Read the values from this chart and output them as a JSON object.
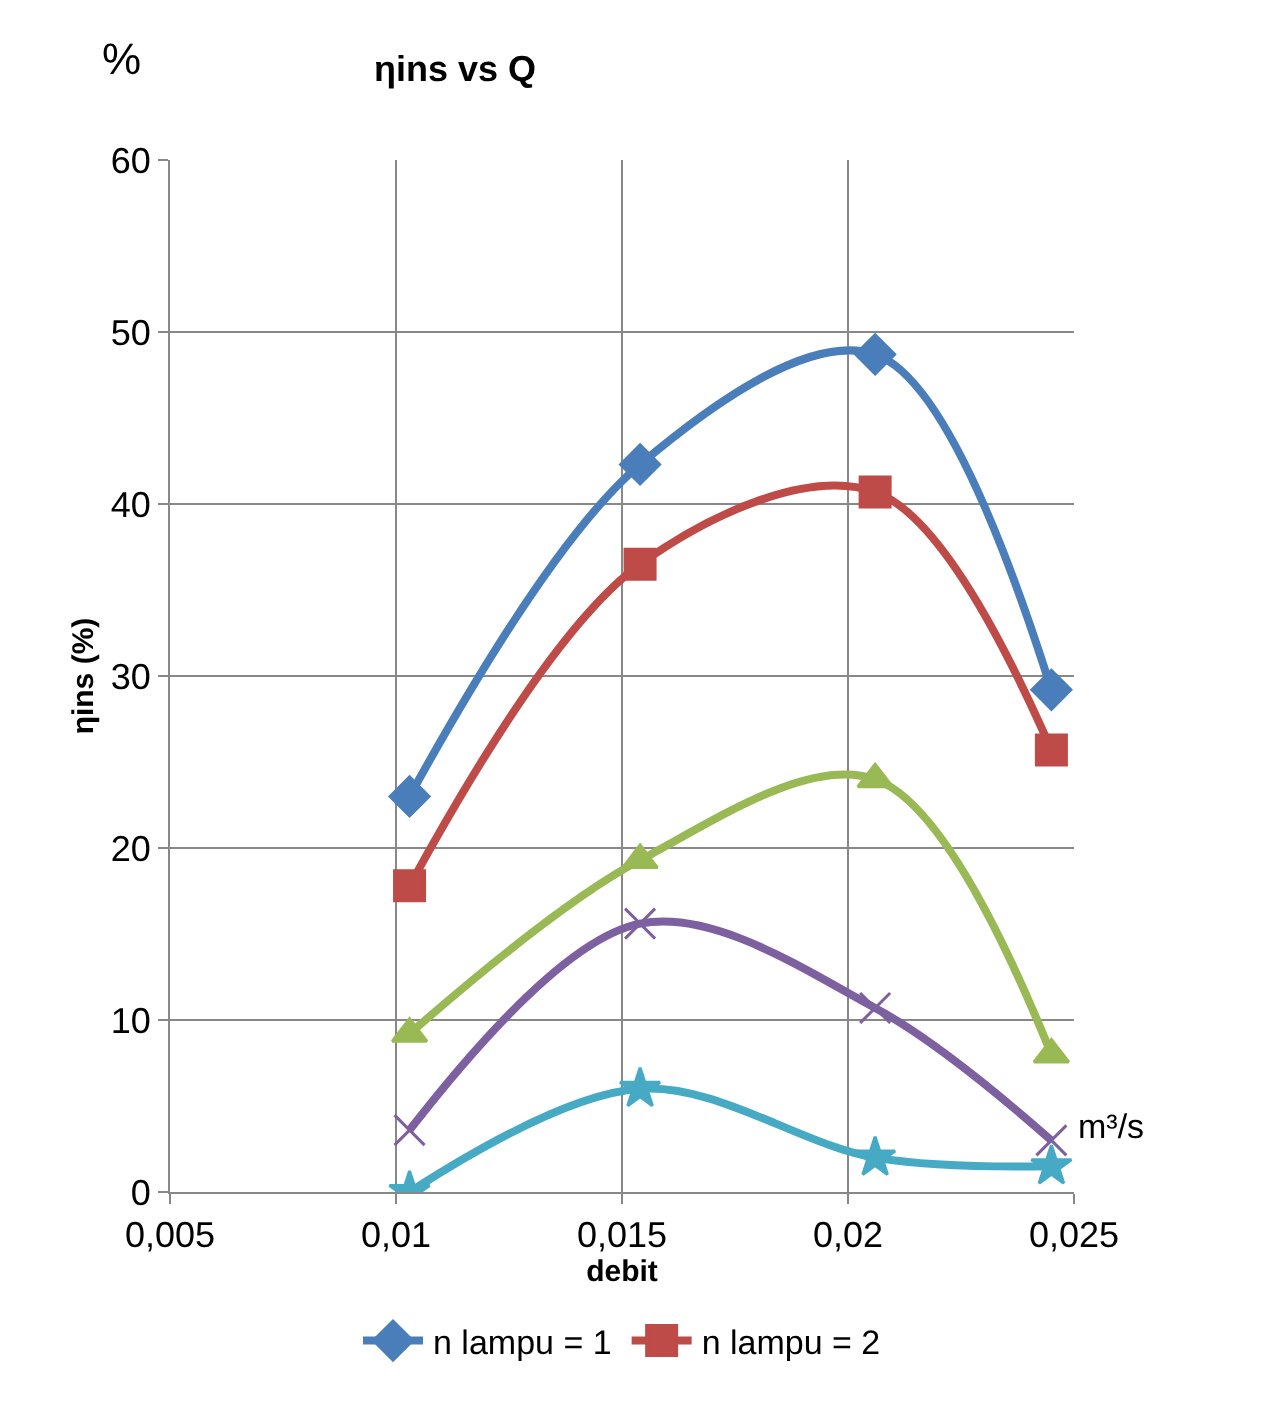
{
  "chart_data": {
    "type": "line",
    "title": "ηins vs Q",
    "xlabel": "debit",
    "ylabel": "ηins (%)",
    "annotations": [
      "%",
      "m³/s"
    ],
    "x": [
      0.0103,
      0.0154,
      0.0206,
      0.0245
    ],
    "series": [
      {
        "name": "n lampu = 1",
        "color": "#4a7ebb",
        "marker": "diamond",
        "values": [
          23,
          42.3,
          48.7,
          29.2
        ]
      },
      {
        "name": "n lampu = 2",
        "color": "#be4b48",
        "marker": "square",
        "values": [
          17.8,
          36.5,
          40.7,
          25.7
        ]
      },
      {
        "color": "#98b954",
        "marker": "triangle",
        "values": [
          9.2,
          19.3,
          24,
          8
        ]
      },
      {
        "color": "#7d60a0",
        "marker": "cross",
        "values": [
          3.6,
          15.6,
          10.7,
          3
        ]
      },
      {
        "color": "#46aac5",
        "marker": "star",
        "values": [
          0,
          6,
          2,
          1.5
        ]
      }
    ],
    "xlim": [
      0.005,
      0.025
    ],
    "xticks": [
      {
        "value": 0.005,
        "label": "0,005"
      },
      {
        "value": 0.01,
        "label": "0,01"
      },
      {
        "value": 0.015,
        "label": "0,015"
      },
      {
        "value": 0.02,
        "label": "0,02"
      },
      {
        "value": 0.025,
        "label": "0,025"
      }
    ],
    "ylim": [
      0,
      60
    ],
    "yticks": [
      0,
      10,
      20,
      30,
      40,
      50,
      60
    ],
    "grid": true,
    "legend": "bottom",
    "line_style": "solid"
  }
}
